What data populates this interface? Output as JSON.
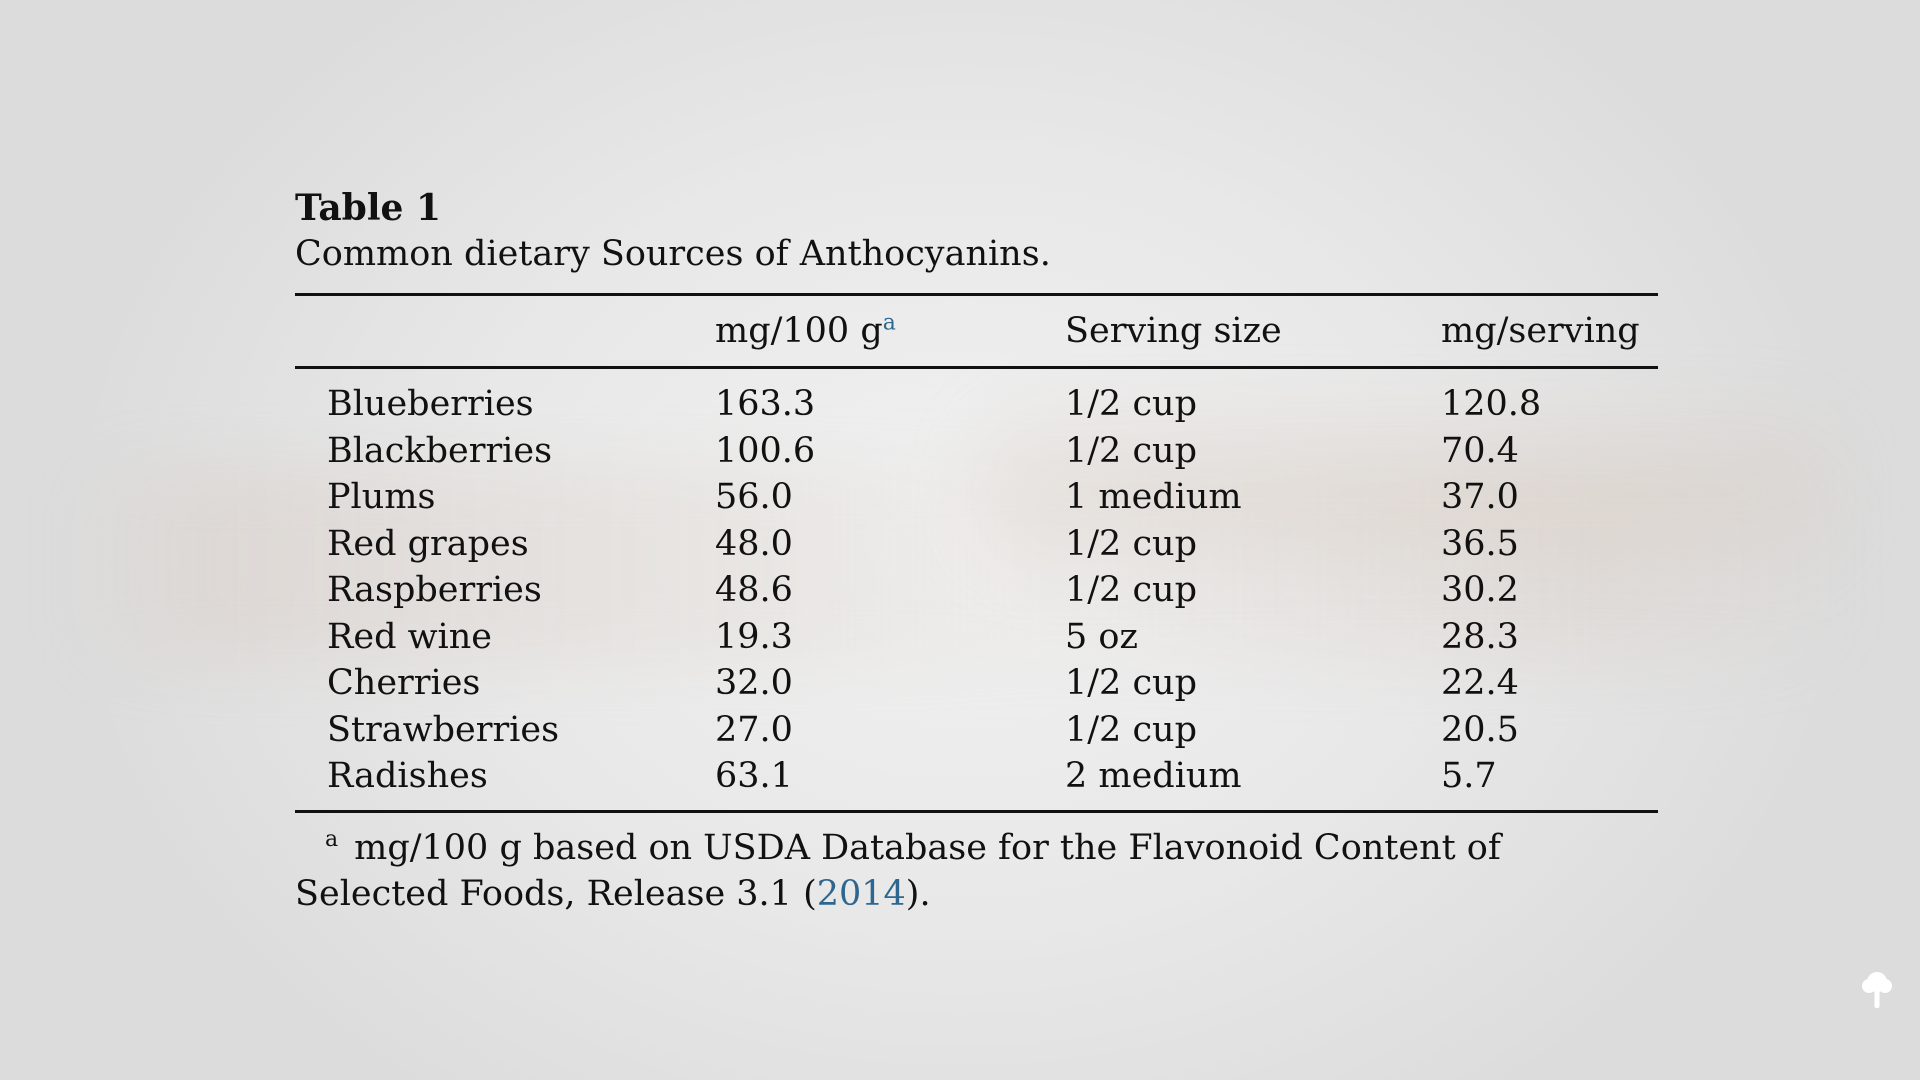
{
  "table": {
    "label": "Table 1",
    "caption": "Common dietary Sources of Anthocyanins.",
    "headers": {
      "col1": "",
      "col2": "mg/100 g",
      "col2_sup": "a",
      "col3": "Serving size",
      "col4": "mg/serving"
    },
    "rows": [
      {
        "food": "Blueberries",
        "mg_per_100g": "163.3",
        "serving": "1/2 cup",
        "mg_per_serving": "120.8"
      },
      {
        "food": "Blackberries",
        "mg_per_100g": "100.6",
        "serving": "1/2 cup",
        "mg_per_serving": "70.4"
      },
      {
        "food": "Plums",
        "mg_per_100g": "56.0",
        "serving": "1 medium",
        "mg_per_serving": "37.0"
      },
      {
        "food": "Red grapes",
        "mg_per_100g": "48.0",
        "serving": "1/2 cup",
        "mg_per_serving": "36.5"
      },
      {
        "food": "Raspberries",
        "mg_per_100g": "48.6",
        "serving": "1/2 cup",
        "mg_per_serving": "30.2"
      },
      {
        "food": "Red wine",
        "mg_per_100g": "19.3",
        "serving": "5 oz",
        "mg_per_serving": "28.3"
      },
      {
        "food": "Cherries",
        "mg_per_100g": "32.0",
        "serving": "1/2 cup",
        "mg_per_serving": "22.4"
      },
      {
        "food": "Strawberries",
        "mg_per_100g": "27.0",
        "serving": "1/2 cup",
        "mg_per_serving": "20.5"
      },
      {
        "food": "Radishes",
        "mg_per_100g": "63.1",
        "serving": "2 medium",
        "mg_per_serving": "5.7"
      }
    ],
    "footnote": {
      "mark": "a",
      "text_before": "mg/100 g based on USDA Database for the Flavonoid Content of Selected Foods, Release 3.1 (",
      "link": "2014",
      "text_after": ")."
    }
  },
  "colors": {
    "link": "#2e6690",
    "text": "#111111",
    "background": "#e8e8e8"
  },
  "icons": {
    "corner": "tree-icon"
  }
}
